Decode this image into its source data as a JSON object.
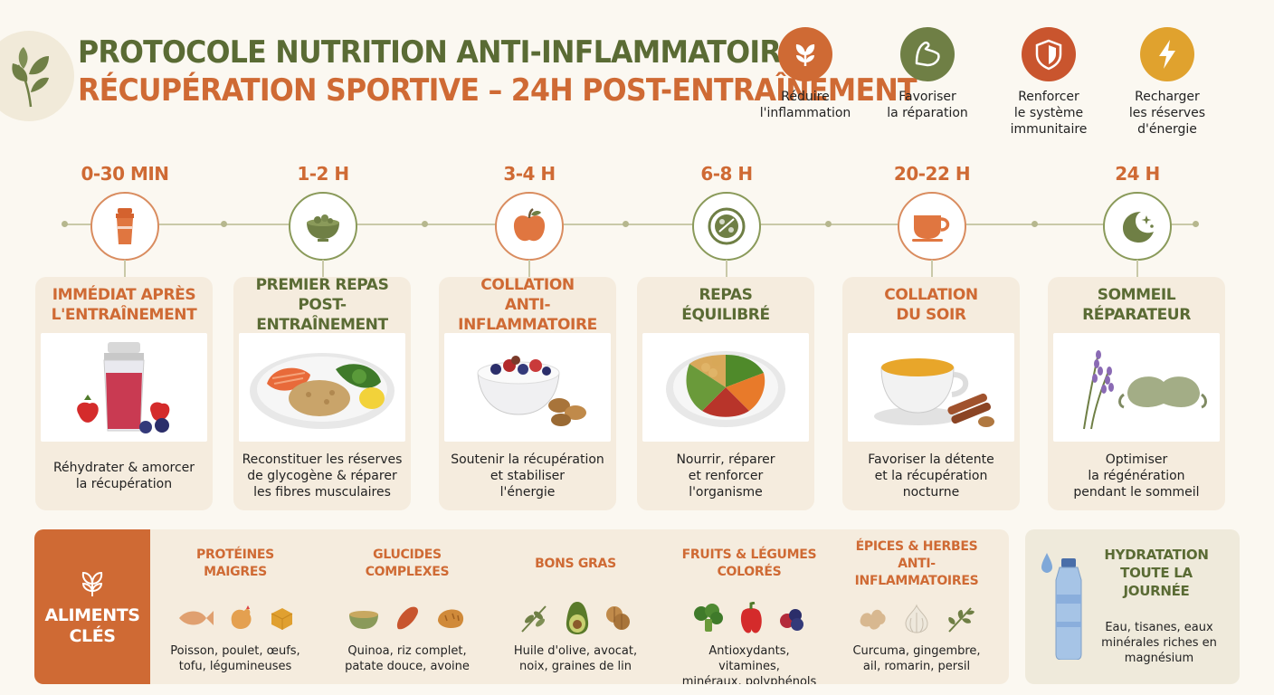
{
  "header": {
    "title_line1": "PROTOCOLE NUTRITION ANTI-INFLAMMATOIRE",
    "title_line2": "RÉCUPÉRATION SPORTIVE – 24H POST-ENTRAÎNEMENT",
    "logo_icon": "leaf-icon"
  },
  "goals": [
    {
      "label": "Réduire l'inflammation",
      "line1": "Réduire",
      "line2": "l'inflammation",
      "line3": "",
      "icon": "sprout-icon",
      "color": "#cf6a34"
    },
    {
      "label": "Favoriser la réparation",
      "line1": "Favoriser",
      "line2": "la réparation",
      "line3": "",
      "icon": "muscle-icon",
      "color": "#6f7f45"
    },
    {
      "label": "Renforcer le système immunitaire",
      "line1": "Renforcer",
      "line2": "le système",
      "line3": "immunitaire",
      "icon": "shield-icon",
      "color": "#c9552e"
    },
    {
      "label": "Recharger les réserves d'énergie",
      "line1": "Recharger",
      "line2": "les réserves",
      "line3": "d'énergie",
      "icon": "lightning-icon",
      "color": "#e0a22e"
    }
  ],
  "timeline": [
    {
      "time": "0-30 MIN",
      "icon": "shaker-bottle-icon",
      "title1": "IMMÉDIAT APRÈS",
      "title2": "L'ENTRAÎNEMENT",
      "desc1": "Réhydrater & amorcer",
      "desc2": "la récupération",
      "desc3": "",
      "image": "smoothie-berries-image"
    },
    {
      "time": "1-2 H",
      "icon": "bowl-icon",
      "title1": "PREMIER REPAS",
      "title2": "POST-ENTRAÎNEMENT",
      "desc1": "Reconstituer les réserves",
      "desc2": "de glycogène & réparer",
      "desc3": "les fibres musculaires",
      "image": "salmon-quinoa-plate-image"
    },
    {
      "time": "3-4 H",
      "icon": "apple-icon",
      "title1": "COLLATION",
      "title2": "ANTI-INFLAMMATOIRE",
      "desc1": "Soutenir la récupération",
      "desc2": "et stabiliser",
      "desc3": "l'énergie",
      "image": "yogurt-berries-nuts-image"
    },
    {
      "time": "6-8 H",
      "icon": "plate-icon",
      "title1": "REPAS",
      "title2": "ÉQUILIBRÉ",
      "desc1": "Nourrir, réparer",
      "desc2": "et renforcer",
      "desc3": "l'organisme",
      "image": "chickpea-vegetable-plate-image"
    },
    {
      "time": "20-22 H",
      "icon": "cup-icon",
      "title1": "COLLATION",
      "title2": "DU SOIR",
      "desc1": "Favoriser la détente",
      "desc2": "et la récupération",
      "desc3": "nocturne",
      "image": "golden-milk-cup-image"
    },
    {
      "time": "24 H",
      "icon": "moon-stars-icon",
      "title1": "SOMMEIL",
      "title2": "RÉPARATEUR",
      "desc1": "Optimiser",
      "desc2": "la régénération",
      "desc3": "pendant le sommeil",
      "image": "lavender-sleep-mask-image"
    }
  ],
  "key_foods": {
    "label_line1": "ALIMENTS",
    "label_line2": "CLÉS",
    "icon": "sprout-icon",
    "categories": [
      {
        "title1": "PROTÉINES",
        "title2": "MAIGRES",
        "desc1": "Poisson, poulet, œufs,",
        "desc2": "tofu, légumineuses",
        "icons": [
          "fish-icon",
          "chicken-icon",
          "tofu-icon"
        ]
      },
      {
        "title1": "GLUCIDES",
        "title2": "COMPLEXES",
        "desc1": "Quinoa, riz complet,",
        "desc2": "patate douce, avoine",
        "icons": [
          "grain-bowl-icon",
          "sweet-potato-icon",
          "bread-icon"
        ]
      },
      {
        "title1": "BONS GRAS",
        "title2": "",
        "desc1": "Huile d'olive, avocat,",
        "desc2": "noix, graines de lin",
        "icons": [
          "olive-branch-icon",
          "avocado-icon",
          "walnut-icon"
        ]
      },
      {
        "title1": "FRUITS & LÉGUMES",
        "title2": "COLORÉS",
        "desc1": "Antioxydants, vitamines,",
        "desc2": "minéraux, polyphénols",
        "icons": [
          "broccoli-icon",
          "pepper-icon",
          "berries-icon"
        ]
      },
      {
        "title1": "ÉPICES & HERBES",
        "title2": "ANTI-INFLAMMATOIRES",
        "desc1": "Curcuma, gingembre,",
        "desc2": "ail, romarin, persil",
        "icons": [
          "ginger-icon",
          "garlic-icon",
          "herb-icon"
        ]
      }
    ]
  },
  "hydration": {
    "title1": "HYDRATATION",
    "title2": "TOUTE LA JOURNÉE",
    "desc1": "Eau, tisanes, eaux",
    "desc2": "minérales riches en",
    "desc3": "magnésium",
    "icon": "water-bottle-icon"
  },
  "colors": {
    "orange": "#cf6a34",
    "olive": "#5a6b34",
    "card_bg": "#f5ecde",
    "page_bg": "#fbf8f1"
  }
}
